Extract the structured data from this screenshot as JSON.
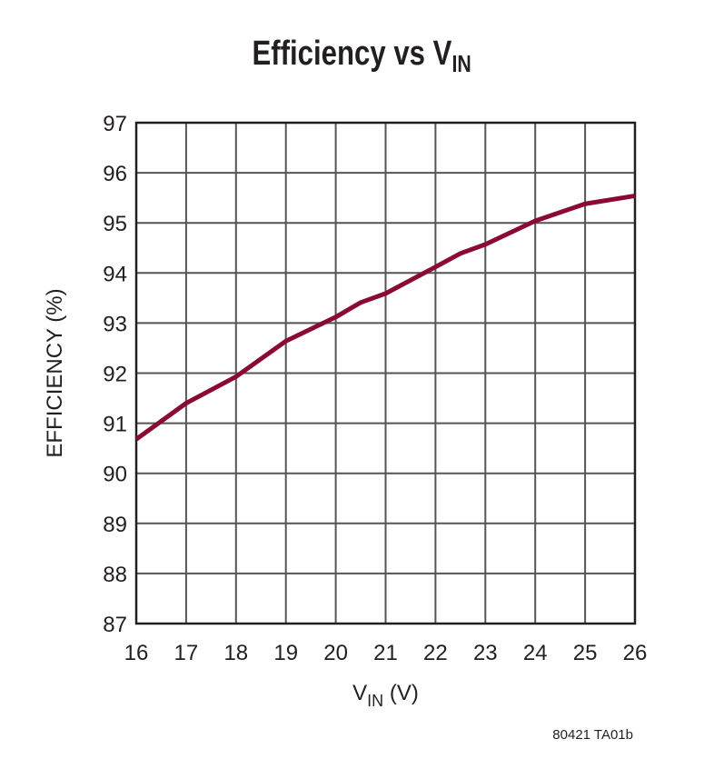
{
  "chart_data": {
    "type": "line",
    "title": "Efficiency vs V",
    "title_subscript": "IN",
    "xlabel": "V",
    "xlabel_subscript": "IN",
    "xlabel_unit": " (V)",
    "ylabel": "EFFICIENCY (%)",
    "xlim": [
      16,
      26
    ],
    "ylim": [
      87,
      97
    ],
    "xticks": [
      16,
      17,
      18,
      19,
      20,
      21,
      22,
      23,
      24,
      25,
      26
    ],
    "yticks": [
      87,
      88,
      89,
      90,
      91,
      92,
      93,
      94,
      95,
      96,
      97
    ],
    "grid": true,
    "line_color": "#8b0a32",
    "series": [
      {
        "x": [
          16,
          17,
          18,
          19,
          20,
          20.5,
          21,
          22,
          22.5,
          23,
          24,
          25,
          26
        ],
        "y": [
          90.68,
          91.4,
          91.93,
          92.64,
          93.12,
          93.41,
          93.59,
          94.12,
          94.39,
          94.57,
          95.04,
          95.38,
          95.54
        ]
      }
    ]
  },
  "footnote": "80421 TA01b"
}
